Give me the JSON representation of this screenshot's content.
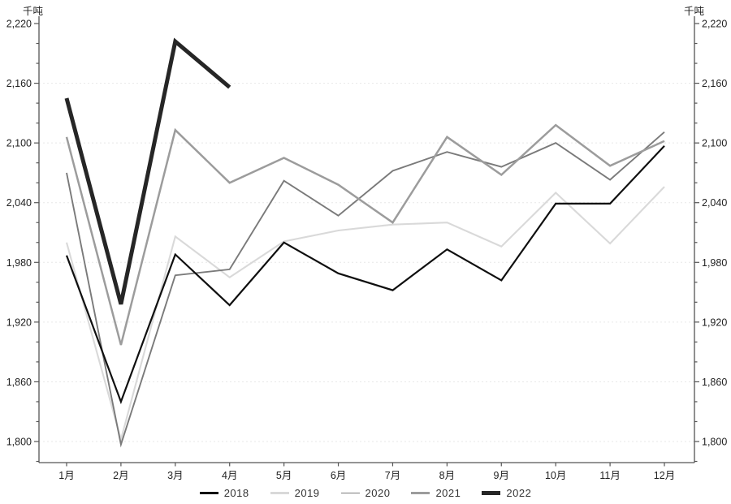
{
  "chart_data": {
    "type": "line",
    "title": "",
    "ylabel_left": "千吨",
    "ylabel_right": "千吨",
    "categories": [
      "1月",
      "2月",
      "3月",
      "4月",
      "5月",
      "6月",
      "7月",
      "8月",
      "9月",
      "10月",
      "11月",
      "12月"
    ],
    "series": [
      {
        "name": "2018",
        "color": "#0f0f0f",
        "width": 2.2,
        "values": [
          1987,
          1840,
          1988,
          1937,
          2000,
          1969,
          1952,
          1993,
          1962,
          2039,
          2039,
          2097
        ]
      },
      {
        "name": "2019",
        "color": "#d9d9d9",
        "width": 2.1,
        "values": [
          2000,
          1802,
          2006,
          1965,
          2001,
          2012,
          2018,
          2020,
          1996,
          2050,
          1999,
          2056
        ]
      },
      {
        "name": "2020",
        "color": "#7a7a7a",
        "width": 1.9,
        "values": [
          2070,
          1797,
          1967,
          1973,
          2062,
          2027,
          2072,
          2091,
          2076,
          2100,
          2063,
          2111
        ]
      },
      {
        "name": "2021",
        "color": "#9c9c9c",
        "width": 2.5,
        "values": [
          2106,
          1897,
          2113,
          2060,
          2085,
          2058,
          2020,
          2106,
          2068,
          2118,
          2077,
          2102
        ]
      },
      {
        "name": "2022",
        "color": "#262626",
        "width": 5,
        "values": [
          2145,
          1938,
          2202,
          2156,
          null,
          null,
          null,
          null,
          null,
          null,
          null,
          null
        ]
      }
    ],
    "ylim": [
      1779,
      2227
    ],
    "yticks": [
      1800,
      1860,
      1920,
      1980,
      2040,
      2100,
      2160,
      2220
    ],
    "ytick_minor_step": 20,
    "grid": "horizontal-dotted-at-major-ticks",
    "legend_position": "bottom-center",
    "z_order": [
      "2019",
      "2020",
      "2021",
      "2018",
      "2022"
    ]
  },
  "colors": {
    "axis": "#555555",
    "tick_label": "#222222",
    "grid": "#e7e7e7",
    "legend_text": "#333333"
  },
  "legend": {
    "items": [
      {
        "label": "2018"
      },
      {
        "label": "2019"
      },
      {
        "label": "2020"
      },
      {
        "label": "2021"
      },
      {
        "label": "2022"
      }
    ]
  }
}
